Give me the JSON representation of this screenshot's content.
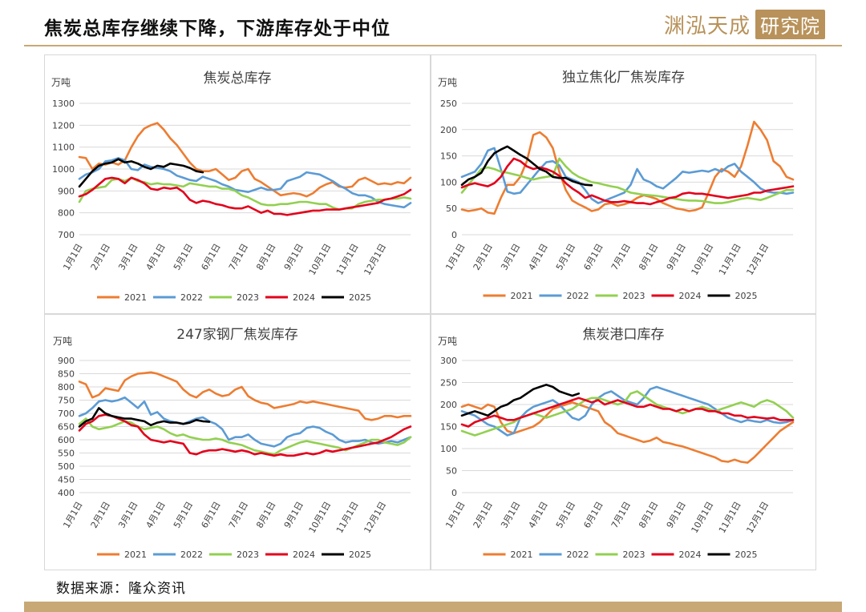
{
  "header": {
    "title": "焦炭总库存继续下降，下游库存处于中位"
  },
  "logo": {
    "brand": "渊泓天成",
    "box": "研究院"
  },
  "footer": {
    "source": "数据来源：隆众资讯"
  },
  "colors": {
    "2021": "#ED7D31",
    "2022": "#5B9BD5",
    "2023": "#92D050",
    "2024": "#E3001B",
    "2025": "#000000"
  },
  "chart_data": [
    {
      "type": "line",
      "title": "焦炭总库存",
      "ylabel": "万吨",
      "ylim": [
        700,
        1300
      ],
      "yticks": [
        "700",
        "800",
        "900",
        "1000",
        "1100",
        "1200",
        "1300"
      ],
      "xticks": [
        "1月1日",
        "2月1日",
        "3月1日",
        "4月1日",
        "5月1日",
        "6月1日",
        "7月1日",
        "8月1日",
        "9月1日",
        "10月1日",
        "11月1日",
        "12月1日"
      ],
      "x_week_count": 52,
      "series": [
        {
          "name": "2021",
          "values": [
            1055,
            1050,
            1000,
            1025,
            1020,
            1030,
            1020,
            1040,
            1100,
            1150,
            1185,
            1200,
            1210,
            1180,
            1140,
            1110,
            1070,
            1030,
            1000,
            990,
            990,
            1000,
            975,
            950,
            960,
            990,
            1000,
            955,
            940,
            920,
            900,
            880,
            885,
            890,
            885,
            875,
            890,
            915,
            930,
            940,
            920,
            915,
            920,
            950,
            960,
            945,
            930,
            935,
            930,
            940,
            935,
            960
          ]
        },
        {
          "name": "2022",
          "values": [
            955,
            975,
            985,
            1000,
            1035,
            1040,
            1050,
            1040,
            1000,
            995,
            1020,
            1010,
            1005,
            1000,
            990,
            970,
            960,
            950,
            945,
            965,
            955,
            945,
            930,
            920,
            905,
            900,
            895,
            905,
            915,
            905,
            905,
            910,
            945,
            955,
            965,
            985,
            980,
            975,
            960,
            945,
            925,
            910,
            890,
            880,
            880,
            870,
            850,
            840,
            835,
            830,
            825,
            845
          ]
        },
        {
          "name": "2023",
          "values": [
            850,
            900,
            910,
            915,
            920,
            950,
            955,
            945,
            960,
            945,
            940,
            930,
            935,
            930,
            930,
            925,
            920,
            935,
            930,
            925,
            920,
            920,
            910,
            910,
            900,
            880,
            870,
            855,
            840,
            835,
            835,
            840,
            840,
            845,
            850,
            850,
            845,
            840,
            840,
            825,
            815,
            820,
            820,
            840,
            850,
            855,
            860,
            860,
            865,
            865,
            870,
            865
          ]
        },
        {
          "name": "2024",
          "values": [
            875,
            885,
            905,
            930,
            955,
            960,
            955,
            935,
            960,
            950,
            935,
            910,
            905,
            915,
            910,
            915,
            895,
            860,
            845,
            855,
            850,
            840,
            835,
            825,
            820,
            820,
            830,
            815,
            800,
            810,
            795,
            795,
            790,
            795,
            800,
            805,
            810,
            810,
            815,
            815,
            815,
            820,
            825,
            830,
            835,
            840,
            845,
            860,
            865,
            875,
            885,
            905
          ]
        },
        {
          "name": "2025",
          "values": [
            920,
            955,
            990,
            1015,
            1025,
            1030,
            1045,
            1030,
            1035,
            1025,
            1010,
            1000,
            1015,
            1010,
            1025,
            1020,
            1015,
            1005,
            990,
            985
          ]
        }
      ]
    },
    {
      "type": "line",
      "title": "独立焦化厂焦炭库存",
      "ylabel": "万吨",
      "ylim": [
        0,
        250
      ],
      "yticks": [
        "0",
        "50",
        "100",
        "150",
        "200",
        "250"
      ],
      "xticks": [
        "1月1日",
        "2月1日",
        "3月1日",
        "4月1日",
        "5月1日",
        "6月1日",
        "7月1日",
        "8月1日",
        "9月1日",
        "10月1日",
        "11月1日",
        "12月1日"
      ],
      "x_week_count": 52,
      "series": [
        {
          "name": "2021",
          "values": [
            48,
            45,
            47,
            50,
            42,
            40,
            70,
            95,
            95,
            110,
            140,
            190,
            195,
            185,
            165,
            120,
            85,
            65,
            58,
            52,
            45,
            48,
            58,
            60,
            55,
            58,
            62,
            70,
            75,
            72,
            68,
            60,
            55,
            50,
            48,
            45,
            47,
            52,
            80,
            110,
            125,
            120,
            110,
            130,
            170,
            215,
            200,
            180,
            140,
            130,
            110,
            105
          ]
        },
        {
          "name": "2022",
          "values": [
            110,
            115,
            120,
            135,
            160,
            165,
            125,
            82,
            78,
            80,
            95,
            110,
            125,
            138,
            140,
            132,
            110,
            105,
            100,
            85,
            68,
            60,
            65,
            70,
            75,
            80,
            95,
            125,
            105,
            100,
            92,
            88,
            98,
            108,
            120,
            118,
            120,
            122,
            120,
            125,
            120,
            130,
            135,
            120,
            110,
            100,
            88,
            82,
            80,
            80,
            78,
            80
          ]
        },
        {
          "name": "2023",
          "values": [
            80,
            95,
            110,
            125,
            128,
            125,
            120,
            118,
            115,
            112,
            108,
            105,
            108,
            110,
            112,
            145,
            130,
            118,
            110,
            105,
            100,
            98,
            95,
            92,
            90,
            85,
            80,
            78,
            76,
            75,
            74,
            72,
            70,
            68,
            66,
            65,
            65,
            64,
            62,
            60,
            60,
            62,
            65,
            68,
            70,
            68,
            66,
            70,
            75,
            80,
            85,
            85
          ]
        },
        {
          "name": "2024",
          "values": [
            90,
            95,
            98,
            95,
            92,
            98,
            110,
            130,
            145,
            140,
            130,
            125,
            128,
            125,
            120,
            112,
            98,
            88,
            80,
            70,
            75,
            70,
            65,
            62,
            62,
            64,
            62,
            60,
            60,
            58,
            62,
            65,
            70,
            72,
            78,
            80,
            78,
            78,
            76,
            74,
            72,
            70,
            72,
            74,
            76,
            80,
            80,
            84,
            86,
            88,
            90,
            92
          ]
        },
        {
          "name": "2025",
          "values": [
            95,
            105,
            110,
            118,
            140,
            155,
            162,
            168,
            160,
            152,
            145,
            135,
            125,
            120,
            110,
            108,
            108,
            102,
            98,
            95,
            94
          ]
        }
      ]
    },
    {
      "type": "line",
      "title": "247家钢厂焦炭库存",
      "ylabel": "万吨",
      "ylim": [
        400,
        900
      ],
      "yticks": [
        "400",
        "450",
        "500",
        "550",
        "600",
        "650",
        "700",
        "750",
        "800",
        "850",
        "900"
      ],
      "xticks": [
        "1月1日",
        "2月1日",
        "3月1日",
        "4月1日",
        "5月1日",
        "6月1日",
        "7月1日",
        "8月1日",
        "9月1日",
        "10月1日",
        "11月1日",
        "12月1日"
      ],
      "x_week_count": 52,
      "series": [
        {
          "name": "2021",
          "values": [
            820,
            810,
            760,
            770,
            795,
            790,
            785,
            825,
            840,
            850,
            852,
            855,
            850,
            840,
            830,
            820,
            790,
            770,
            760,
            780,
            790,
            775,
            765,
            770,
            790,
            800,
            765,
            750,
            740,
            735,
            720,
            725,
            730,
            735,
            745,
            740,
            745,
            740,
            735,
            730,
            725,
            720,
            715,
            710,
            680,
            675,
            680,
            690,
            690,
            685,
            690,
            690
          ]
        },
        {
          "name": "2022",
          "values": [
            690,
            700,
            720,
            745,
            750,
            745,
            750,
            760,
            740,
            720,
            745,
            695,
            705,
            680,
            670,
            665,
            660,
            670,
            680,
            685,
            670,
            660,
            640,
            600,
            610,
            610,
            620,
            600,
            585,
            580,
            575,
            585,
            610,
            620,
            625,
            645,
            650,
            645,
            630,
            620,
            600,
            590,
            595,
            595,
            600,
            590,
            585,
            590,
            595,
            590,
            600,
            610
          ]
        },
        {
          "name": "2023",
          "values": [
            660,
            680,
            650,
            640,
            645,
            650,
            660,
            670,
            665,
            650,
            640,
            645,
            650,
            640,
            625,
            615,
            620,
            610,
            605,
            600,
            600,
            605,
            600,
            590,
            585,
            580,
            570,
            560,
            555,
            550,
            545,
            560,
            570,
            580,
            590,
            595,
            590,
            585,
            580,
            575,
            570,
            560,
            570,
            580,
            590,
            600,
            600,
            590,
            585,
            580,
            590,
            610
          ]
        },
        {
          "name": "2024",
          "values": [
            635,
            660,
            670,
            690,
            695,
            690,
            680,
            670,
            655,
            650,
            620,
            600,
            595,
            590,
            595,
            590,
            585,
            550,
            545,
            555,
            560,
            560,
            565,
            560,
            555,
            560,
            555,
            545,
            550,
            545,
            540,
            545,
            540,
            540,
            545,
            550,
            545,
            550,
            560,
            555,
            560,
            565,
            570,
            575,
            580,
            585,
            590,
            600,
            610,
            625,
            640,
            650
          ]
        },
        {
          "name": "2025",
          "values": [
            650,
            670,
            680,
            720,
            700,
            690,
            685,
            680,
            680,
            675,
            670,
            655,
            665,
            670,
            665,
            665,
            660,
            665,
            675,
            670,
            668
          ]
        }
      ]
    },
    {
      "type": "line",
      "title": "焦炭港口库存",
      "ylabel": "万吨",
      "ylim": [
        0,
        300
      ],
      "yticks": [
        "0",
        "50",
        "100",
        "150",
        "200",
        "250",
        "300"
      ],
      "xticks": [
        "1月1日",
        "2月1日",
        "3月1日",
        "4月1日",
        "5月1日",
        "6月1日",
        "7月1日",
        "8月1日",
        "9月1日",
        "10月1日",
        "11月1日",
        "12月1日"
      ],
      "x_week_count": 52,
      "series": [
        {
          "name": "2021",
          "values": [
            195,
            200,
            195,
            190,
            200,
            195,
            160,
            140,
            135,
            140,
            145,
            150,
            160,
            175,
            190,
            195,
            200,
            205,
            200,
            195,
            190,
            185,
            160,
            150,
            135,
            130,
            125,
            120,
            115,
            118,
            125,
            115,
            112,
            108,
            105,
            100,
            95,
            90,
            85,
            80,
            72,
            70,
            75,
            70,
            68,
            80,
            95,
            110,
            125,
            140,
            150,
            160
          ]
        },
        {
          "name": "2022",
          "values": [
            185,
            180,
            175,
            165,
            155,
            150,
            140,
            130,
            135,
            170,
            185,
            195,
            200,
            205,
            210,
            200,
            185,
            170,
            165,
            175,
            200,
            215,
            225,
            230,
            220,
            210,
            205,
            200,
            215,
            235,
            240,
            235,
            230,
            225,
            220,
            215,
            210,
            205,
            200,
            190,
            180,
            170,
            165,
            160,
            165,
            162,
            160,
            165,
            160,
            158,
            160,
            165
          ]
        },
        {
          "name": "2023",
          "values": [
            140,
            135,
            130,
            135,
            140,
            145,
            150,
            155,
            160,
            170,
            175,
            180,
            175,
            170,
            175,
            180,
            185,
            190,
            200,
            210,
            215,
            215,
            210,
            205,
            200,
            205,
            225,
            230,
            220,
            210,
            200,
            195,
            190,
            185,
            180,
            185,
            190,
            195,
            190,
            185,
            190,
            195,
            200,
            205,
            200,
            195,
            205,
            210,
            205,
            195,
            185,
            170
          ]
        },
        {
          "name": "2024",
          "values": [
            155,
            150,
            160,
            165,
            170,
            175,
            170,
            165,
            165,
            170,
            175,
            180,
            185,
            190,
            195,
            200,
            205,
            210,
            215,
            210,
            205,
            210,
            200,
            205,
            210,
            205,
            200,
            195,
            195,
            200,
            195,
            190,
            190,
            185,
            190,
            185,
            190,
            190,
            185,
            185,
            180,
            180,
            175,
            175,
            170,
            172,
            170,
            168,
            170,
            165,
            165,
            165
          ]
        },
        {
          "name": "2025",
          "values": [
            175,
            180,
            185,
            180,
            175,
            185,
            195,
            200,
            210,
            215,
            225,
            235,
            240,
            245,
            240,
            230,
            225,
            220,
            225
          ]
        }
      ]
    }
  ]
}
